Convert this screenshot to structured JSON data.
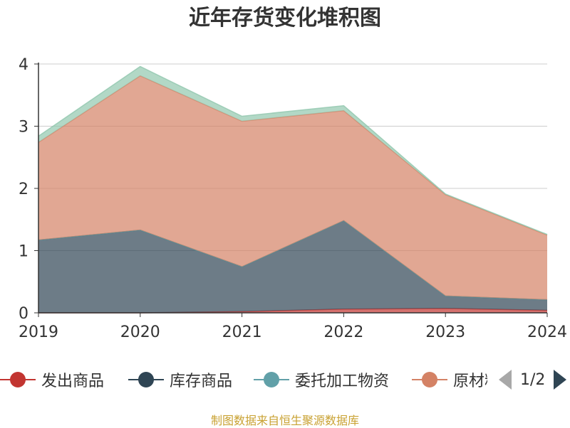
{
  "page_title": "近年存货变化堆积图",
  "source_note": "制图数据来自恒生聚源数据库",
  "legend_page": "1/2",
  "chart_data": {
    "type": "area",
    "stacked": true,
    "x": [
      "2019",
      "2020",
      "2021",
      "2022",
      "2023",
      "2024"
    ],
    "ylim": [
      0,
      4
    ],
    "yticks": [
      "0",
      "1",
      "2",
      "3",
      "4"
    ],
    "grid": true,
    "legend_position": "bottom",
    "series": [
      {
        "name": "发出商品",
        "color": "#c23531",
        "values": [
          0.0,
          0.0,
          0.02,
          0.06,
          0.07,
          0.04
        ]
      },
      {
        "name": "库存商品",
        "color": "#2f4554",
        "values": [
          1.17,
          1.33,
          0.72,
          1.42,
          0.2,
          0.17
        ]
      },
      {
        "name": "委托加工物资",
        "color": "#61a0a8",
        "values": [
          0.0,
          0.0,
          0.0,
          0.0,
          0.0,
          0.0
        ]
      },
      {
        "name": "原材料",
        "color": "#d48265",
        "values": [
          1.57,
          2.48,
          2.34,
          1.77,
          1.63,
          1.04
        ]
      },
      {
        "color": "#91c7ae",
        "values": [
          0.1,
          0.15,
          0.08,
          0.08,
          0.01,
          0.01
        ]
      }
    ]
  }
}
